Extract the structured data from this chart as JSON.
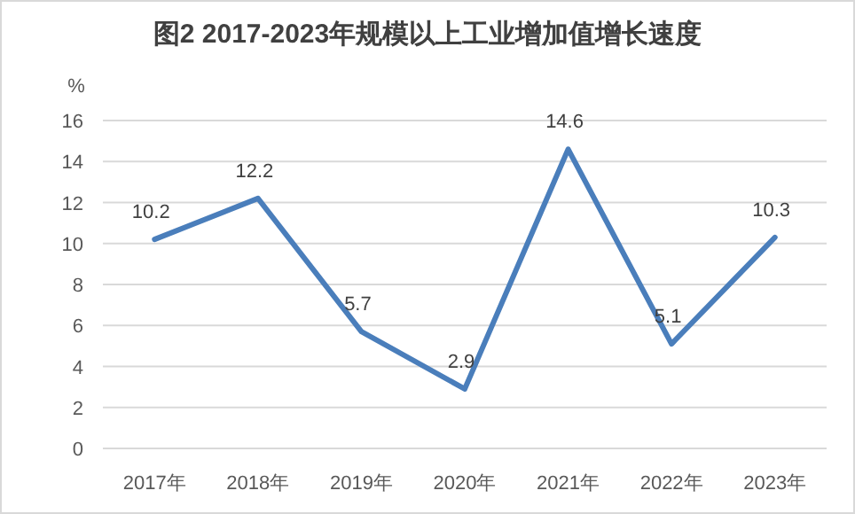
{
  "chart_data": {
    "type": "line",
    "title": "图2  2017-2023年规模以上工业增加值增长速度",
    "ylabel": "%",
    "categories": [
      "2017年",
      "2018年",
      "2019年",
      "2020年",
      "2021年",
      "2022年",
      "2023年"
    ],
    "series": [
      {
        "color": "#4a7ebb",
        "values": [
          10.2,
          12.2,
          5.7,
          2.9,
          14.6,
          5.1,
          10.3
        ]
      }
    ],
    "ylim": [
      0,
      16
    ],
    "yticks": [
      0,
      2,
      4,
      6,
      8,
      10,
      12,
      14,
      16
    ],
    "grid": "y",
    "data_labels": true
  }
}
